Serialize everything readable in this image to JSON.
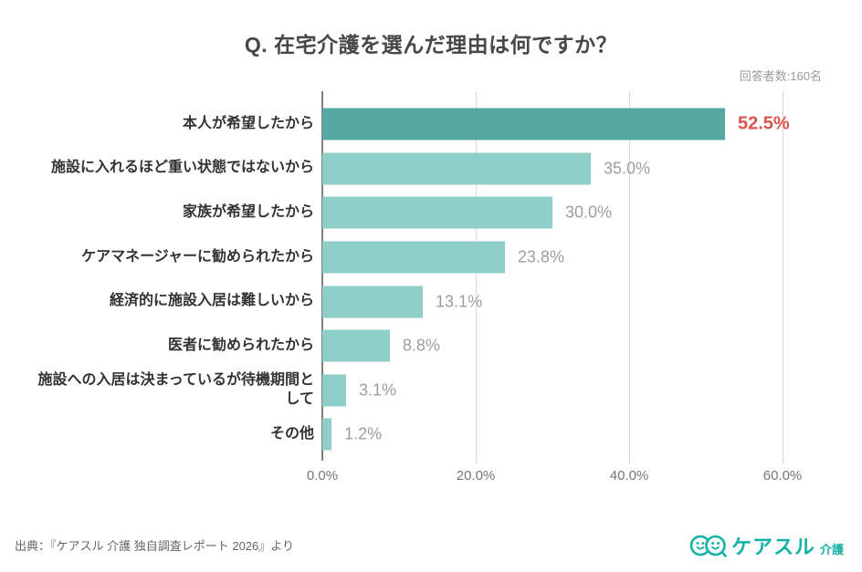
{
  "title": "Q. 在宅介護を選んだ理由は何ですか？",
  "respondents_label": "回答者数:160名",
  "source_note": "出典：『ケアスル 介護 独自調査レポート 2026』より",
  "logo": {
    "text_main": "ケアスル",
    "text_sub": "介護",
    "color": "#14B3A5"
  },
  "chart_data": {
    "type": "bar",
    "orientation": "horizontal",
    "title": "Q. 在宅介護を選んだ理由は何ですか？",
    "categories": [
      "本人が希望したから",
      "施設に入れるほど重い状態ではないから",
      "家族が希望したから",
      "ケアマネージャーに勧められたから",
      "経済的に施設入居は難しいから",
      "医者に勧められたから",
      "施設への入居は決まっているが待機期間として",
      "その他"
    ],
    "values": [
      52.5,
      35.0,
      30.0,
      23.8,
      13.1,
      8.8,
      3.1,
      1.2
    ],
    "value_labels": [
      "52.5%",
      "35.0%",
      "30.0%",
      "23.8%",
      "13.1%",
      "8.8%",
      "3.1%",
      "1.2%"
    ],
    "unit": "%",
    "xlim": [
      0,
      60
    ],
    "x_tick_values": [
      0,
      20,
      40,
      60
    ],
    "x_tick_labels": [
      "0.0%",
      "20.0%",
      "40.0%",
      "60.0%"
    ],
    "grid": true,
    "legend": false,
    "highlight_index": 0,
    "colors": {
      "bar_default": "#8FCFC9",
      "bar_highlight": "#56A9A3",
      "value_default": "#9E9E9E",
      "value_highlight": "#D9534F",
      "axis_line": "#7F7F7F",
      "grid_line": "#D9D9D9"
    }
  }
}
